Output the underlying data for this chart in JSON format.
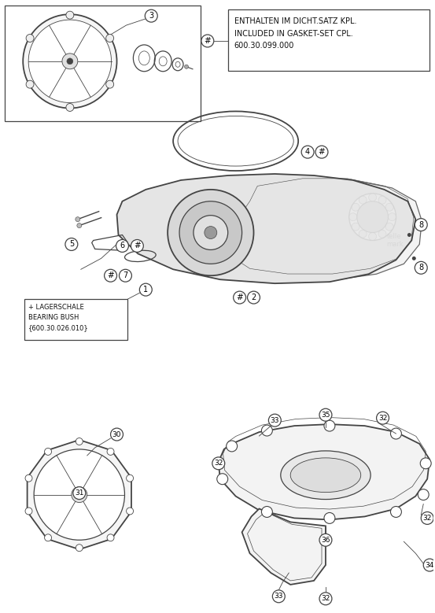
{
  "bg_color": "#ffffff",
  "box_text": "ENTHALTEN IM DICHT.SATZ KPL.\nINCLUDED IN GASKET-SET CPL.\n600.30.099.000",
  "bearing_bush_text": "+ LAGERSCHALE\nBEARING BUSH\n{600.30.026.010}",
  "line_color": "#444444",
  "text_color": "#111111",
  "light_gray": "#e8e8e8",
  "mid_gray": "#cccccc",
  "dark_gray": "#aaaaaa",
  "watermark_color": "#d0d0d0",
  "fig_w": 5.53,
  "fig_h": 7.79,
  "dpi": 100
}
